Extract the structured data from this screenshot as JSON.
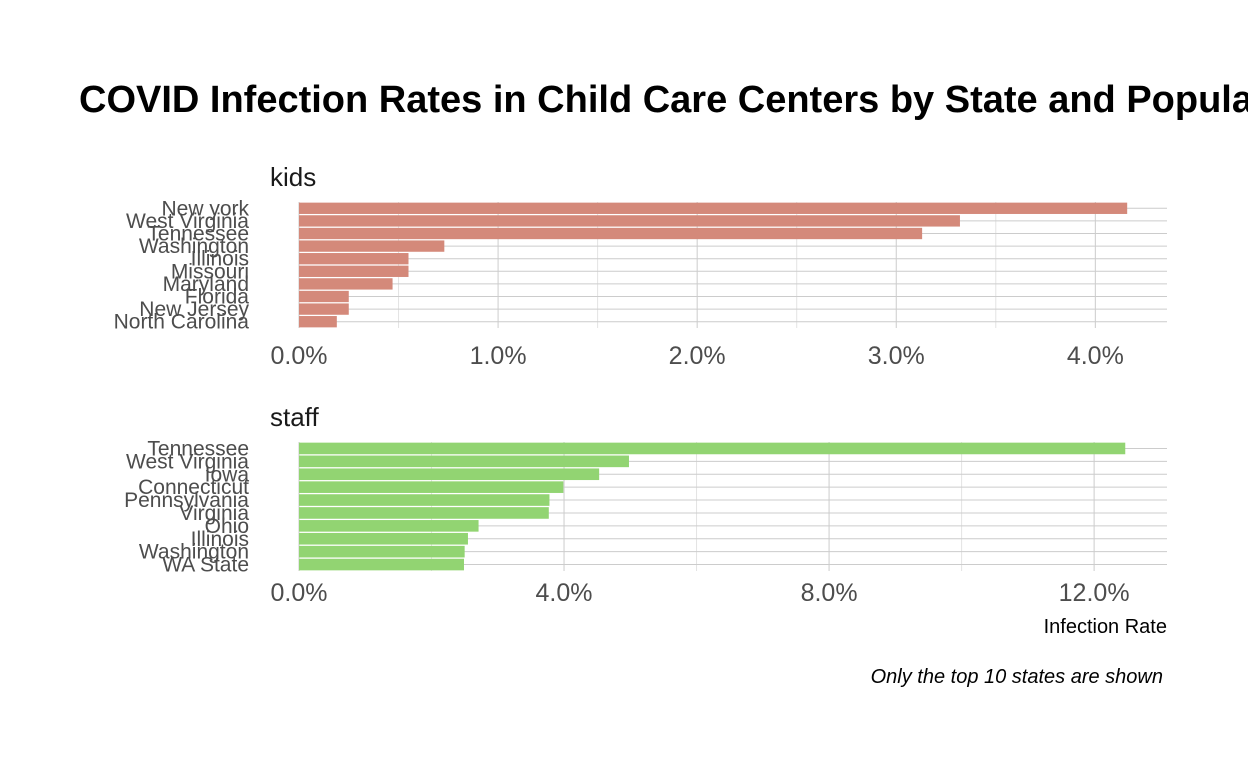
{
  "chart_data": {
    "type": "bar",
    "title": "COVID Infection Rates in Child Care Centers by State and Population",
    "xlabel": "Infection Rate",
    "caption": "Only the top 10 states are shown",
    "orientation": "horizontal",
    "grid": true,
    "panels": [
      {
        "name": "kids",
        "color": "#d4897a",
        "xlim": [
          0,
          0.0436
        ],
        "ticks": [
          0.0,
          0.01,
          0.02,
          0.03,
          0.04
        ],
        "tick_labels": [
          "0.0%",
          "1.0%",
          "2.0%",
          "3.0%",
          "4.0%"
        ],
        "categories": [
          "New york",
          "West Virginia",
          "Tennessee",
          "Washington",
          "Illinois",
          "Missouri",
          "Maryland",
          "Florida",
          "New Jersey",
          "North Carolina"
        ],
        "values": [
          0.0416,
          0.0332,
          0.0313,
          0.0073,
          0.0055,
          0.0055,
          0.0047,
          0.0025,
          0.0025,
          0.0019
        ]
      },
      {
        "name": "staff",
        "color": "#92d472",
        "xlim": [
          0,
          0.131
        ],
        "ticks": [
          0.0,
          0.04,
          0.08,
          0.12
        ],
        "tick_labels": [
          "0.0%",
          "4.0%",
          "8.0%",
          "12.0%"
        ],
        "categories": [
          "Tennessee",
          "West Virginia",
          "Iowa",
          "Connecticut",
          "Pennsylvania",
          "Virginia",
          "Ohio",
          "Illinois",
          "Washington",
          "WA State"
        ],
        "values": [
          0.1247,
          0.0498,
          0.0453,
          0.0399,
          0.0378,
          0.0377,
          0.0271,
          0.0255,
          0.025,
          0.0249
        ]
      }
    ]
  }
}
